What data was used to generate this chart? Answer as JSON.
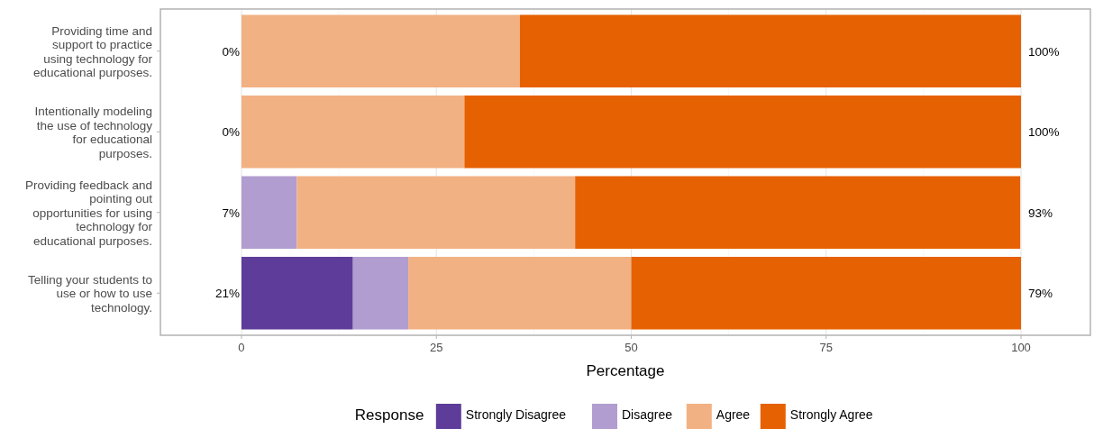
{
  "chart_data": {
    "type": "bar",
    "orientation": "horizontal",
    "stacked": true,
    "xlabel": "Percentage",
    "legend_title": "Response",
    "legend": "bottom",
    "grid": "x",
    "categories": [
      "Providing time and support to practice using technology for educational purposes.",
      "Intentionally modeling the use of technology for educational purposes.",
      "Providing feedback and pointing out opportunities for using technology for educational purposes.",
      "Telling your students to use or how to use technology."
    ],
    "series": [
      {
        "name": "Strongly Disagree",
        "color": "#5e3c99",
        "values": [
          0,
          0,
          0,
          14.3
        ]
      },
      {
        "name": "Disagree",
        "color": "#b19dcf",
        "values": [
          0,
          0,
          7.1,
          7.1
        ]
      },
      {
        "name": "Agree",
        "color": "#f2b183",
        "values": [
          35.7,
          28.6,
          35.7,
          28.6
        ]
      },
      {
        "name": "Strongly Agree",
        "color": "#e66101",
        "values": [
          64.3,
          71.4,
          57.1,
          50
        ]
      }
    ],
    "xlim": [
      -10.4,
      108.9
    ],
    "xticks": [
      0,
      25,
      50,
      75,
      100
    ],
    "annotations": [
      "0%",
      "0%",
      "7%",
      "21%",
      "100%",
      "100%",
      "93%",
      "79%"
    ]
  }
}
